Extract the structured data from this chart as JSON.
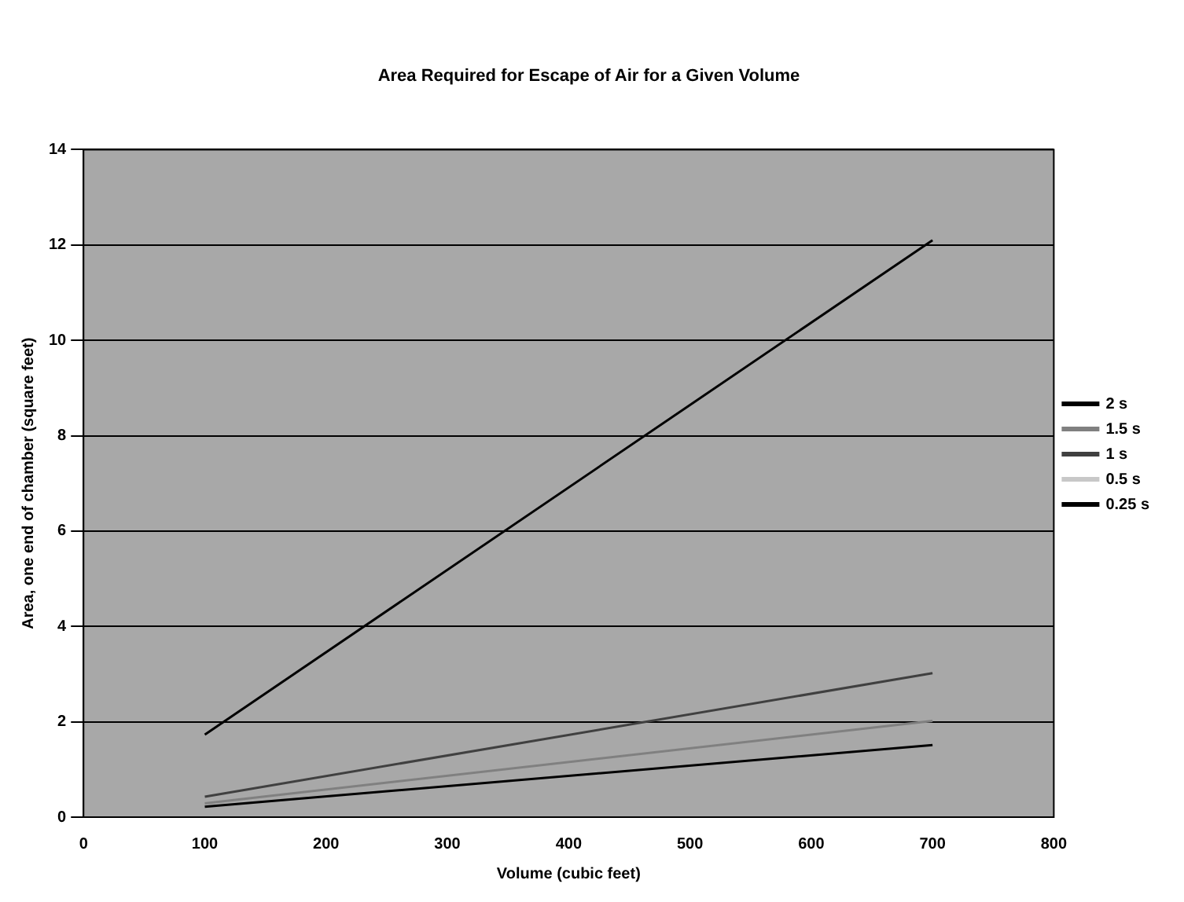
{
  "chart_data": {
    "type": "line",
    "title": "Area Required for Escape of Air for a Given Volume",
    "xlabel": "Volume (cubic feet)",
    "ylabel": "Area, one end of chamber (square feet)",
    "x": [
      100,
      700
    ],
    "series": [
      {
        "name": "2 s",
        "color": "#000000",
        "values": [
          0.22,
          1.51
        ]
      },
      {
        "name": "1.5 s",
        "color": "#808080",
        "values": [
          0.29,
          2.02
        ]
      },
      {
        "name": "1 s",
        "color": "#404040",
        "values": [
          0.43,
          3.02
        ]
      },
      {
        "name": "0.5 s",
        "color": "#c8c8c8",
        "values": [
          null,
          null
        ]
      },
      {
        "name": "0.25 s",
        "color": "#000000",
        "values": [
          1.73,
          12.1
        ]
      }
    ],
    "xlim": [
      0,
      800
    ],
    "xticks": [
      0,
      100,
      200,
      300,
      400,
      500,
      600,
      700,
      800
    ],
    "ylim": [
      0,
      14
    ],
    "yticks": [
      0,
      2,
      4,
      6,
      8,
      10,
      12,
      14
    ],
    "grid": "y",
    "legend": "right",
    "marker": "none",
    "line_style": "solid"
  }
}
